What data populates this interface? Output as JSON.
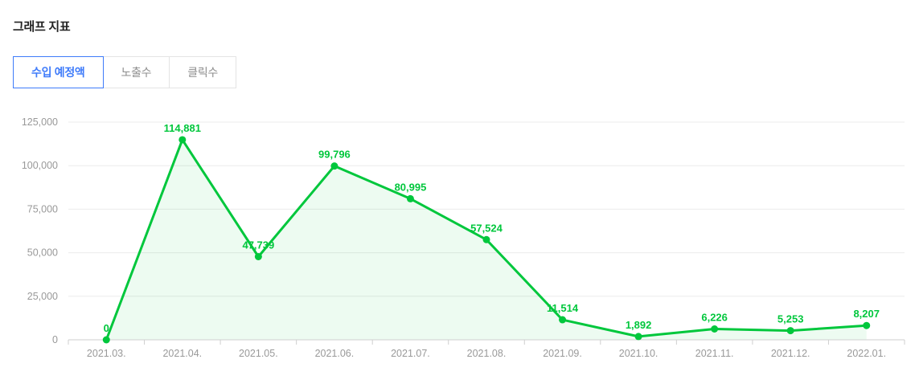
{
  "page": {
    "title": "그래프 지표"
  },
  "tabs": [
    {
      "label": "수입 예정액",
      "active": true
    },
    {
      "label": "노출수",
      "active": false
    },
    {
      "label": "클릭수",
      "active": false
    }
  ],
  "colors": {
    "accent_green": "#00c73c",
    "area_fill": "rgba(0,199,60,0.07)",
    "accent_blue": "#3e7bfa",
    "axis_line": "#cfcfcf",
    "gridline": "#ebebeb",
    "tick_label": "#999999"
  },
  "chart_data": {
    "type": "line",
    "title": "수입 예정액",
    "categories": [
      "2021.03.",
      "2021.04.",
      "2021.05.",
      "2021.06.",
      "2021.07.",
      "2021.08.",
      "2021.09.",
      "2021.10.",
      "2021.11.",
      "2021.12.",
      "2022.01."
    ],
    "values": [
      0,
      114881,
      47739,
      99796,
      80995,
      57524,
      11514,
      1892,
      6226,
      5253,
      8207
    ],
    "xlabel": "",
    "ylabel": "",
    "ylim": [
      0,
      125000
    ],
    "ytick_step": 25000,
    "ytick_labels": [
      "0",
      "25,000",
      "50,000",
      "75,000",
      "100,000",
      "125,000"
    ],
    "grid": true,
    "legend_position": "none",
    "area_fill": true,
    "point_labels_visible": true
  }
}
